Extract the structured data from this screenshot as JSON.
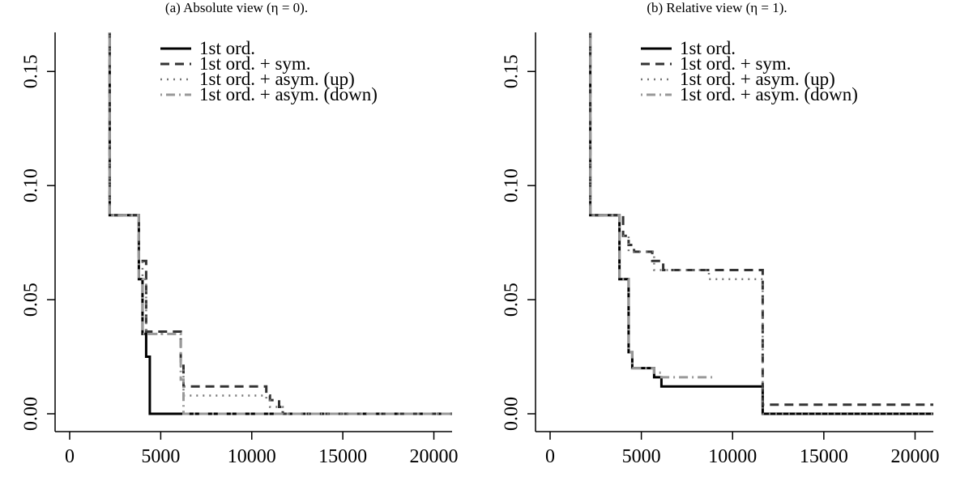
{
  "chart_data": [
    {
      "type": "line",
      "title": "(a) Absolute view (η = 0).",
      "xlabel": "",
      "ylabel": "",
      "xlim": [
        0,
        21000
      ],
      "ylim": [
        0,
        0.165
      ],
      "xticks": [
        "0",
        "5000",
        "10000",
        "15000",
        "20000"
      ],
      "yticks": [
        "0.00",
        "0.05",
        "0.10",
        "0.15"
      ],
      "legend_position": "top-center",
      "series": [
        {
          "name": "1st ord.",
          "color": "#000000",
          "style": "solid",
          "x": [
            2200,
            2200,
            3800,
            3800,
            4000,
            4000,
            4200,
            4200,
            4400,
            4400,
            21000
          ],
          "y": [
            0.2,
            0.087,
            0.087,
            0.059,
            0.059,
            0.035,
            0.035,
            0.025,
            0.025,
            0,
            0
          ]
        },
        {
          "name": "1st ord. + sym.",
          "color": "#333333",
          "style": "dashed",
          "x": [
            2200,
            2200,
            3800,
            3800,
            4000,
            4000,
            4200,
            4200,
            6100,
            6100,
            6250,
            6250,
            10800,
            10800,
            11000,
            11000,
            11500,
            11500,
            11700,
            11700,
            21000
          ],
          "y": [
            0.2,
            0.087,
            0.087,
            0.067,
            0.067,
            0.067,
            0.067,
            0.036,
            0.036,
            0.023,
            0.023,
            0.012,
            0.012,
            0.008,
            0.008,
            0.006,
            0.006,
            0.003,
            0.003,
            0,
            0
          ]
        },
        {
          "name": "1st ord. + asym. (up)",
          "color": "#777777",
          "style": "dotted",
          "x": [
            2200,
            2200,
            3800,
            3800,
            4000,
            4000,
            4200,
            4200,
            6100,
            6100,
            6250,
            6250,
            10800,
            10800,
            11000,
            11000,
            11700,
            11700,
            21000
          ],
          "y": [
            0.2,
            0.087,
            0.087,
            0.067,
            0.067,
            0.059,
            0.059,
            0.035,
            0.035,
            0.02,
            0.02,
            0.008,
            0.008,
            0.006,
            0.006,
            0.003,
            0.003,
            0,
            0
          ]
        },
        {
          "name": "1st ord. + asym. (down)",
          "color": "#999999",
          "style": "dashdot",
          "x": [
            2200,
            2200,
            3800,
            3800,
            4000,
            4000,
            4200,
            4200,
            6100,
            6100,
            6250,
            6250,
            11700,
            11700,
            21000
          ],
          "y": [
            0.2,
            0.087,
            0.087,
            0.059,
            0.059,
            0.035,
            0.035,
            0.035,
            0.035,
            0.015,
            0.015,
            0,
            0,
            0,
            0
          ]
        }
      ]
    },
    {
      "type": "line",
      "title": "(b) Relative view (η = 1).",
      "xlabel": "",
      "ylabel": "",
      "xlim": [
        0,
        21000
      ],
      "ylim": [
        0,
        0.165
      ],
      "xticks": [
        "0",
        "5000",
        "10000",
        "15000",
        "20000"
      ],
      "yticks": [
        "0.00",
        "0.05",
        "0.10",
        "0.15"
      ],
      "legend_position": "top-center",
      "series": [
        {
          "name": "1st ord.",
          "color": "#000000",
          "style": "solid",
          "x": [
            2200,
            2200,
            3800,
            3800,
            4300,
            4300,
            4500,
            4500,
            5700,
            5700,
            6100,
            6100,
            11650,
            11650,
            21000
          ],
          "y": [
            0.2,
            0.087,
            0.087,
            0.059,
            0.059,
            0.027,
            0.027,
            0.02,
            0.02,
            0.016,
            0.016,
            0.012,
            0.012,
            0,
            0
          ]
        },
        {
          "name": "1st ord. + sym.",
          "color": "#333333",
          "style": "dashed",
          "x": [
            2200,
            2200,
            3800,
            3800,
            4000,
            4000,
            4300,
            4300,
            4600,
            4600,
            5600,
            5600,
            6200,
            6200,
            11650,
            11650,
            21000
          ],
          "y": [
            0.2,
            0.087,
            0.087,
            0.087,
            0.087,
            0.078,
            0.078,
            0.074,
            0.074,
            0.071,
            0.071,
            0.067,
            0.067,
            0.063,
            0.063,
            0.004,
            0.004
          ]
        },
        {
          "name": "1st ord. + asym. (up)",
          "color": "#777777",
          "style": "dotted",
          "x": [
            2200,
            2200,
            3800,
            3800,
            4300,
            4300,
            5700,
            5700,
            8700,
            8700,
            11650,
            11650,
            21000
          ],
          "y": [
            0.2,
            0.087,
            0.087,
            0.078,
            0.078,
            0.071,
            0.071,
            0.063,
            0.063,
            0.059,
            0.059,
            0,
            0
          ]
        },
        {
          "name": "1st ord. + asym. (down)",
          "color": "#999999",
          "style": "dashdot",
          "x": [
            2200,
            2200,
            3800,
            3800,
            4300,
            4300,
            4500,
            4500,
            5700,
            5700,
            6100,
            6100,
            9000
          ],
          "y": [
            0.2,
            0.087,
            0.087,
            0.059,
            0.059,
            0.027,
            0.027,
            0.02,
            0.02,
            0.018,
            0.018,
            0.016,
            0.016
          ]
        }
      ]
    }
  ]
}
